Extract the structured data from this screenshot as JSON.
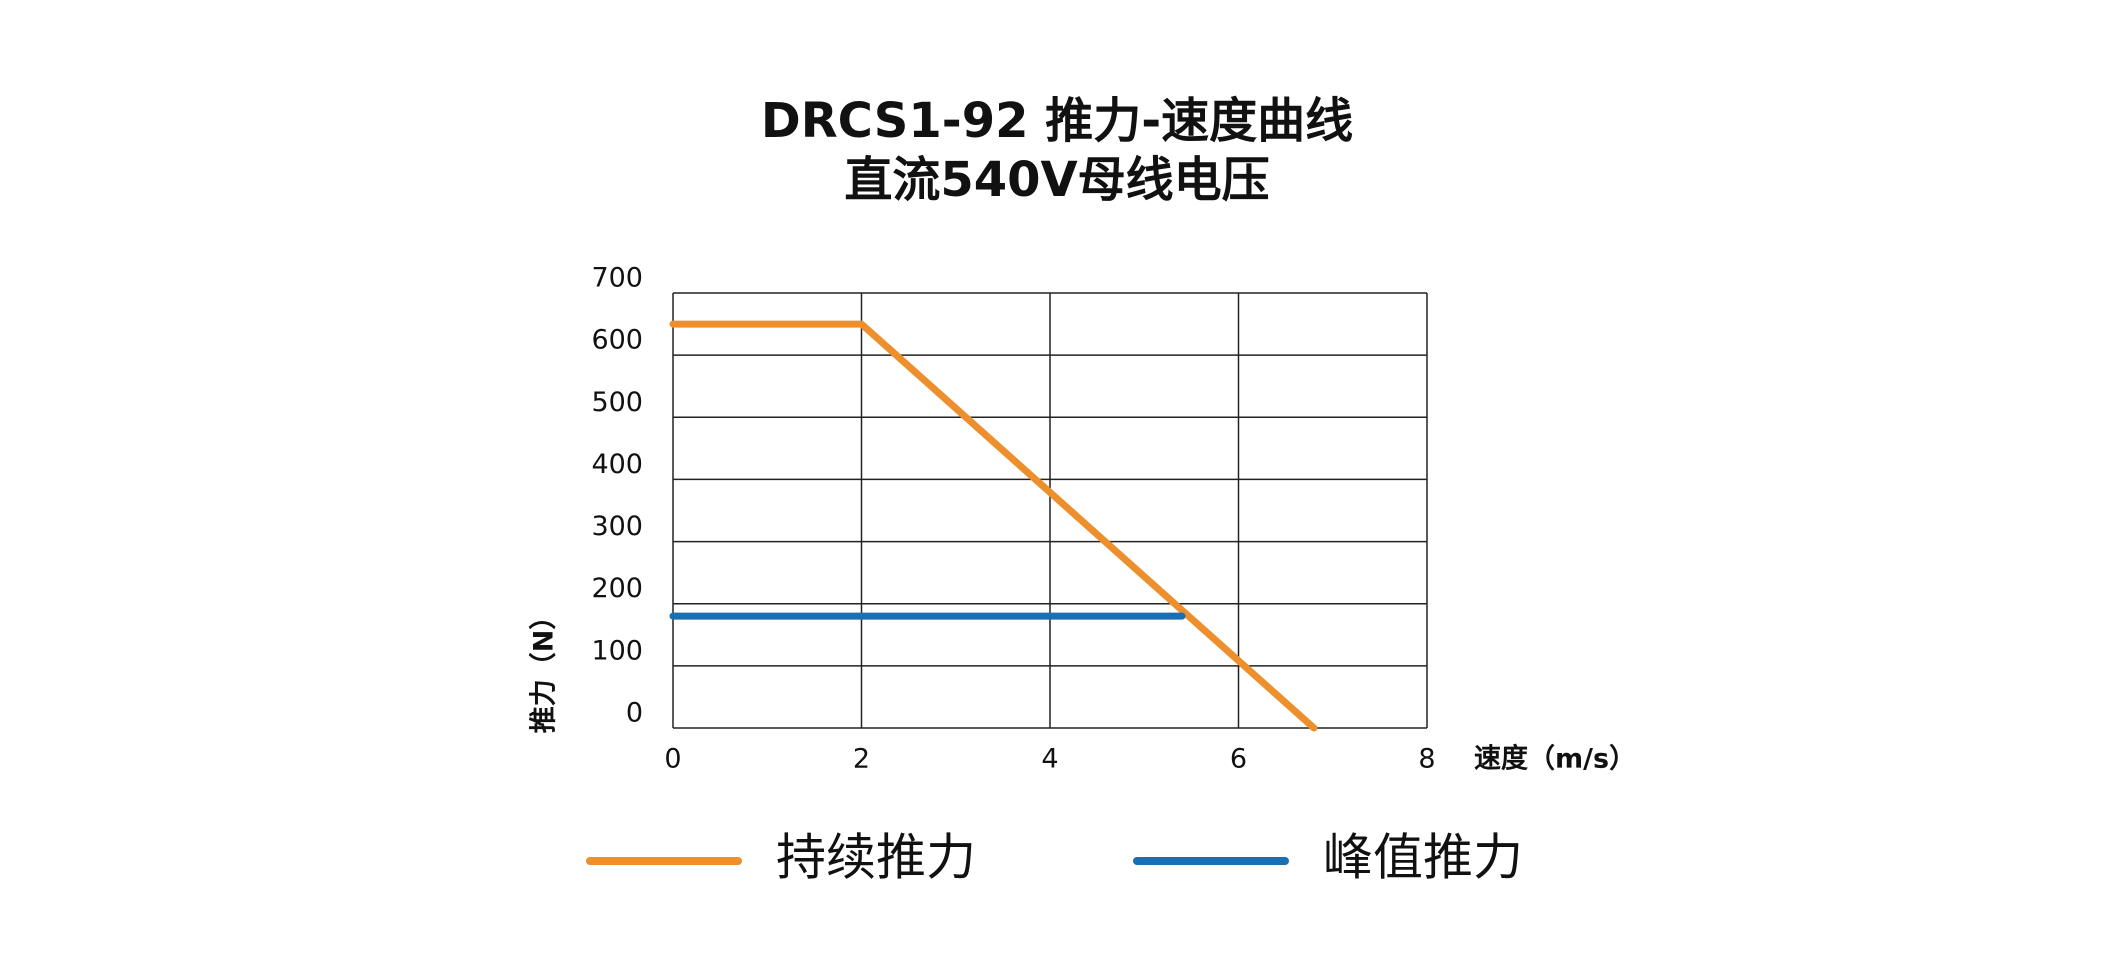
{
  "chart_data": {
    "type": "line",
    "title": "DRCS1-92 推力-速度曲线",
    "subtitle": "直流540V母线电压",
    "x_label": "速度（m/s）",
    "y_label": "推力（N）",
    "xlim": [
      0,
      8
    ],
    "xticks": [
      0,
      2,
      4,
      6,
      8
    ],
    "ylim": [
      0,
      700
    ],
    "yticks": [
      0,
      100,
      200,
      300,
      400,
      500,
      600,
      700
    ],
    "grid": true,
    "legend": "bottom",
    "series": [
      {
        "name": "持续推力",
        "color": "#ec8f2c",
        "x": [
          0,
          2,
          6.8
        ],
        "values": [
          650,
          650,
          0
        ]
      },
      {
        "name": "峰值推力",
        "color": "#1a6fb3",
        "x": [
          0,
          5.4
        ],
        "values": [
          180,
          180
        ]
      }
    ]
  }
}
